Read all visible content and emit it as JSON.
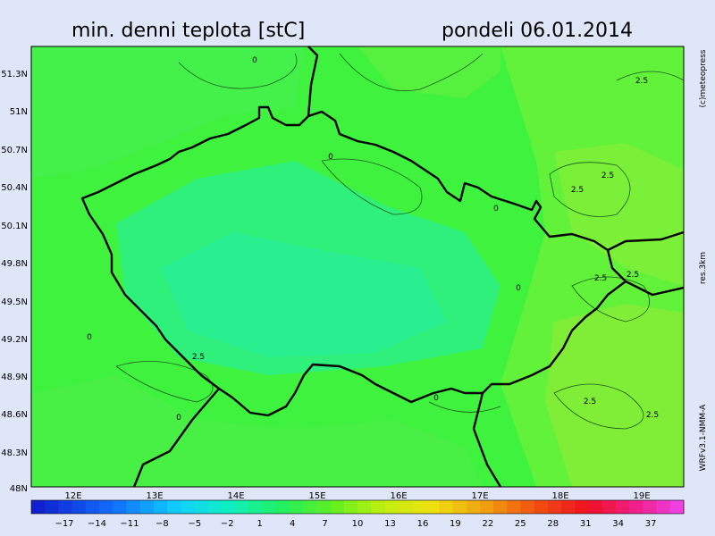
{
  "header": {
    "title": "min. denni teplota [stC]",
    "date": "pondeli 06.01.2014"
  },
  "map": {
    "lat_labels": [
      "51.3N",
      "51N",
      "50.7N",
      "50.4N",
      "50.1N",
      "49.8N",
      "49.5N",
      "49.2N",
      "48.9N",
      "48.6N",
      "48.3N",
      "48N"
    ],
    "lon_labels": [
      "12E",
      "13E",
      "14E",
      "15E",
      "16E",
      "17E",
      "18E",
      "19E"
    ],
    "contour_labels": [
      "0",
      "0",
      "0",
      "0",
      "0",
      "0",
      "0",
      "2.5",
      "2.5",
      "2.5",
      "2.5",
      "2.5",
      "2.5",
      "2.5",
      "2.5"
    ]
  },
  "side_notes": [
    "(c)meteopress",
    "res.3km",
    "WRFv3.1-NMM-A"
  ],
  "colorbar": {
    "labels": [
      "−17",
      "−14",
      "−11",
      "−8",
      "−5",
      "−2",
      "1",
      "4",
      "7",
      "10",
      "13",
      "16",
      "19",
      "22",
      "25",
      "28",
      "31",
      "34",
      "37"
    ]
  }
}
